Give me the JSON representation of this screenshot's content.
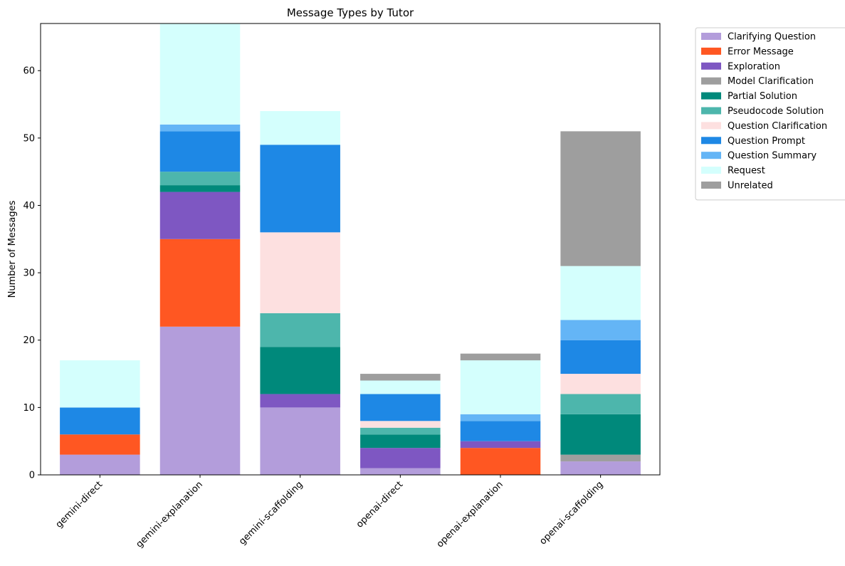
{
  "chart_data": {
    "type": "bar",
    "stacked": true,
    "title": "Message Types by Tutor",
    "xlabel": "",
    "ylabel": "Number of Messages",
    "ylim": [
      0,
      67
    ],
    "yticks": [
      0,
      10,
      20,
      30,
      40,
      50,
      60
    ],
    "grid": false,
    "legend_position": "outside-right",
    "categories": [
      "gemini-direct",
      "gemini-explanation",
      "gemini-scaffolding",
      "openai-direct",
      "openai-explanation",
      "openai-scaffolding"
    ],
    "series": [
      {
        "name": "Clarifying Question",
        "color": "#b39ddb",
        "values": [
          3,
          22,
          10,
          1,
          0,
          2
        ]
      },
      {
        "name": "Error Message",
        "color": "#ff5722",
        "values": [
          3,
          13,
          0,
          0,
          4,
          0
        ]
      },
      {
        "name": "Exploration",
        "color": "#7e57c2",
        "values": [
          0,
          7,
          2,
          3,
          1,
          0
        ]
      },
      {
        "name": "Model Clarification",
        "color": "#9e9e9e",
        "values": [
          0,
          0,
          0,
          0,
          0,
          1
        ]
      },
      {
        "name": "Partial Solution",
        "color": "#00897b",
        "values": [
          0,
          1,
          7,
          2,
          0,
          6
        ]
      },
      {
        "name": "Pseudocode Solution",
        "color": "#4db6ac",
        "values": [
          0,
          2,
          5,
          1,
          0,
          3
        ]
      },
      {
        "name": "Question Clarification",
        "color": "#fde0e0",
        "values": [
          0,
          0,
          12,
          1,
          0,
          3
        ]
      },
      {
        "name": "Question Prompt",
        "color": "#1e88e5",
        "values": [
          4,
          6,
          13,
          4,
          3,
          5
        ]
      },
      {
        "name": "Question Summary",
        "color": "#64b5f6",
        "values": [
          0,
          1,
          0,
          0,
          1,
          3
        ]
      },
      {
        "name": "Request",
        "color": "#d4fffd",
        "values": [
          7,
          15,
          5,
          2,
          8,
          8
        ]
      },
      {
        "name": "Unrelated",
        "color": "#9e9e9e",
        "values": [
          0,
          0,
          0,
          1,
          1,
          20
        ]
      }
    ]
  }
}
